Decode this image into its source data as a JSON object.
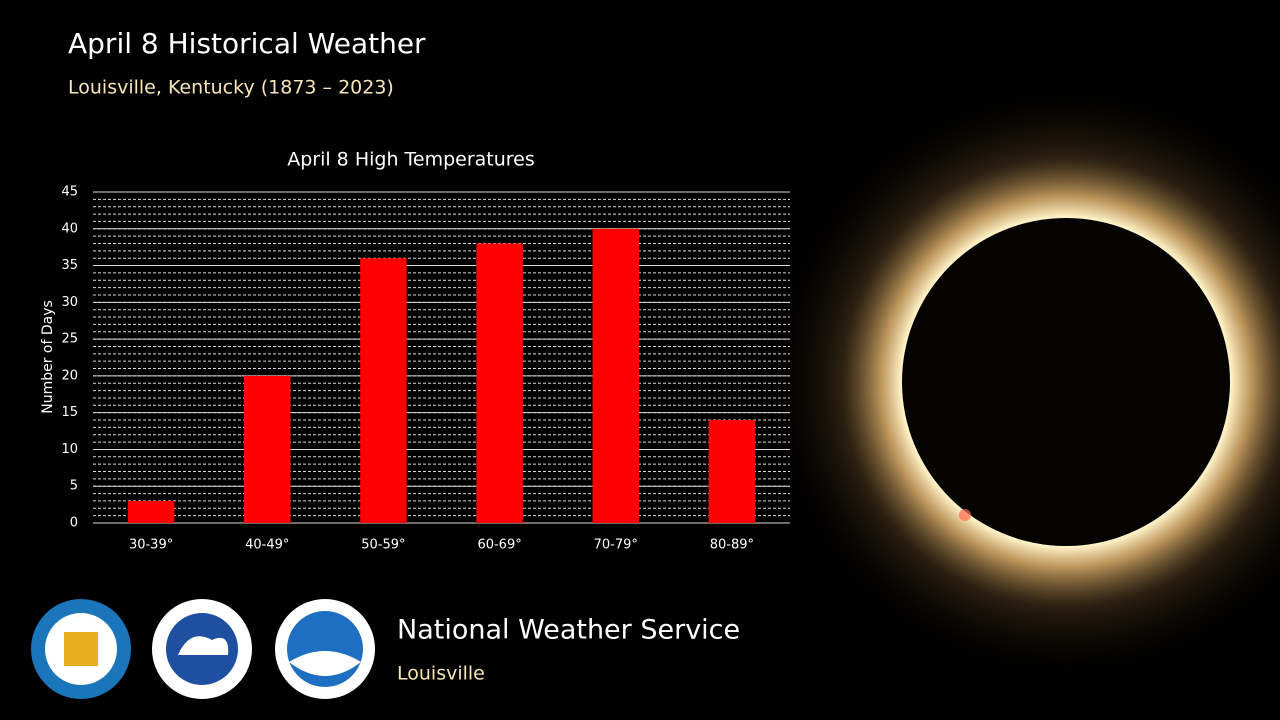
{
  "header": {
    "title": "April 8 Historical Weather",
    "subtitle": "Louisville, Kentucky (1873 – 2023)"
  },
  "chart_data": {
    "type": "bar",
    "title": "April 8 High Temperatures",
    "y_label": "Number of Days",
    "categories": [
      "30-39°",
      "40-49°",
      "50-59°",
      "60-69°",
      "70-79°",
      "80-89°"
    ],
    "values": [
      3,
      20,
      36,
      38,
      40,
      14
    ],
    "color": "#ff0000",
    "ylim": [
      0,
      45
    ],
    "yticks": [
      0,
      5,
      10,
      15,
      20,
      25,
      30,
      35,
      40,
      45
    ],
    "grid": true,
    "minor_grid_step": 1
  },
  "footer": {
    "organization": "National Weather Service",
    "office": "Louisville"
  }
}
